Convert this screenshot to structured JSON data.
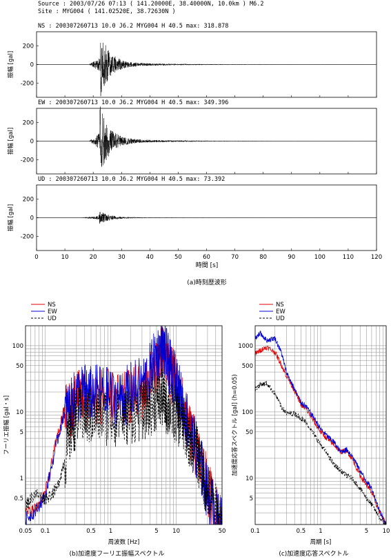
{
  "header": {
    "source": "Source : 2003/07/26 07:13 ( 141.20000E, 38.40000N,   10.0km ) M6.2",
    "site": "Site   : MYG004 ( 141.02520E, 38.72630N )"
  },
  "colors": {
    "NS": "#e00000",
    "EW": "#0000d0",
    "UD": "#000000"
  },
  "chart_data": [
    {
      "type": "line",
      "title": "(a)時刻歴波形",
      "xlabel": "時間 [s]",
      "xlim": [
        0,
        120
      ],
      "xticks": [
        "0",
        "10",
        "20",
        "30",
        "40",
        "50",
        "60",
        "70",
        "80",
        "90",
        "100",
        "110",
        "120"
      ],
      "panels": [
        {
          "component": "NS",
          "label": "NS : 200307260713  10.0 J6.2 MYG004 H  40.5 max: 318.878",
          "ylabel": "振幅 [gal]",
          "ylim": [
            -350,
            350
          ],
          "yticks": [
            "200",
            "0",
            "-200"
          ],
          "max": 318.878,
          "onset_s": 18.5,
          "peak_s": 22.6
        },
        {
          "component": "EW",
          "label": "EW : 200307260713  10.0 J6.2 MYG004 H  40.5 max: 349.396",
          "ylabel": "振幅 [gal]",
          "ylim": [
            -350,
            350
          ],
          "yticks": [
            "200",
            "0",
            "-200"
          ],
          "max": 349.396,
          "onset_s": 18.5,
          "peak_s": 22.4
        },
        {
          "component": "UD",
          "label": "UD : 200307260713  10.0 J6.2 MYG004 H  40.5 max:  73.392",
          "ylabel": "振幅 [gal]",
          "ylim": [
            -350,
            350
          ],
          "yticks": [
            "200",
            "0",
            "-200"
          ],
          "max": 73.392,
          "onset_s": 15.5,
          "peak_s": 22.0
        }
      ]
    },
    {
      "type": "line",
      "title": "(b)加速度フーリエ振幅スペクトル",
      "xlabel": "周波数 [Hz]",
      "ylabel": "フーリエ振幅 [gal・s]",
      "xscale": "log",
      "yscale": "log",
      "xlim": [
        0.05,
        50
      ],
      "ylim": [
        0.2,
        200
      ],
      "xticks": [
        "0.05",
        "0.1",
        "0.5",
        "1",
        "5",
        "10",
        "50"
      ],
      "yticks": [
        "100",
        "50",
        "10",
        "5",
        "1",
        "0.5"
      ],
      "legend": [
        "NS",
        "EW",
        "UD"
      ],
      "series": [
        {
          "name": "NS",
          "x": [
            0.05,
            0.07,
            0.1,
            0.15,
            0.2,
            0.25,
            0.3,
            0.4,
            0.5,
            0.7,
            1,
            1.5,
            2,
            3,
            4,
            5,
            6,
            7,
            8,
            10,
            12,
            15,
            20,
            25,
            30,
            40,
            50
          ],
          "y": [
            0.3,
            0.35,
            0.6,
            4,
            12,
            12,
            18,
            20,
            18,
            20,
            17,
            15,
            20,
            22,
            35,
            60,
            80,
            70,
            45,
            30,
            15,
            7,
            3,
            1.5,
            0.8,
            0.35,
            0.2
          ]
        },
        {
          "name": "EW",
          "x": [
            0.05,
            0.07,
            0.1,
            0.15,
            0.2,
            0.25,
            0.3,
            0.4,
            0.5,
            0.7,
            1,
            1.5,
            2,
            3,
            4,
            5,
            6,
            7,
            8,
            10,
            12,
            15,
            20,
            25,
            30,
            40,
            50
          ],
          "y": [
            0.25,
            0.32,
            0.55,
            3.5,
            11,
            13,
            20,
            22,
            20,
            22,
            18,
            17,
            23,
            28,
            45,
            80,
            100,
            80,
            50,
            32,
            16,
            7,
            3,
            1.4,
            0.7,
            0.3,
            0.2
          ]
        },
        {
          "name": "UD",
          "x": [
            0.05,
            0.07,
            0.1,
            0.15,
            0.2,
            0.25,
            0.3,
            0.4,
            0.5,
            0.7,
            1,
            1.5,
            2,
            3,
            4,
            5,
            6,
            7,
            8,
            10,
            12,
            15,
            20,
            25,
            30,
            40,
            50
          ],
          "y": [
            0.4,
            0.6,
            0.5,
            0.7,
            2,
            6,
            9,
            10,
            9,
            10,
            9,
            9,
            10,
            11,
            13,
            16,
            18,
            14,
            12,
            10,
            8,
            5,
            3,
            1.4,
            0.7,
            0.35,
            0.2
          ]
        }
      ]
    },
    {
      "type": "line",
      "title": "(c)加速度応答スペクトル",
      "xlabel": "周期 [s]",
      "ylabel": "加速度応答スペクトル [gal] (h=0.05)",
      "xscale": "log",
      "yscale": "log",
      "xlim": [
        0.1,
        10
      ],
      "ylim": [
        2,
        2000
      ],
      "xticks": [
        "0.1",
        "0.5",
        "1",
        "5",
        "10"
      ],
      "yticks": [
        "1000",
        "500",
        "100",
        "50",
        "10",
        "5"
      ],
      "legend": [
        "NS",
        "EW",
        "UD"
      ],
      "series": [
        {
          "name": "NS",
          "x": [
            0.1,
            0.12,
            0.15,
            0.2,
            0.25,
            0.3,
            0.4,
            0.5,
            0.6,
            0.8,
            1,
            1.3,
            1.6,
            2,
            2.5,
            3,
            4,
            5,
            6,
            8,
            10
          ],
          "y": [
            750,
            850,
            950,
            800,
            520,
            350,
            210,
            130,
            110,
            70,
            50,
            38,
            32,
            25,
            26,
            20,
            11,
            8,
            6,
            3,
            2
          ]
        },
        {
          "name": "EW",
          "x": [
            0.1,
            0.12,
            0.15,
            0.2,
            0.25,
            0.3,
            0.4,
            0.5,
            0.6,
            0.8,
            1,
            1.3,
            1.6,
            2,
            2.5,
            3,
            4,
            5,
            6,
            8,
            10
          ],
          "y": [
            1300,
            1550,
            1200,
            1300,
            800,
            400,
            220,
            140,
            120,
            80,
            55,
            42,
            35,
            25,
            27,
            22,
            13,
            9,
            7,
            3.2,
            2
          ]
        },
        {
          "name": "UD",
          "x": [
            0.1,
            0.12,
            0.15,
            0.2,
            0.25,
            0.3,
            0.4,
            0.5,
            0.6,
            0.8,
            1,
            1.3,
            1.6,
            2,
            2.5,
            3,
            4,
            5,
            6,
            8,
            10
          ],
          "y": [
            220,
            260,
            270,
            190,
            120,
            95,
            95,
            80,
            70,
            45,
            32,
            22,
            16,
            13,
            11,
            10,
            7,
            5,
            4,
            2.5,
            2
          ]
        }
      ]
    }
  ]
}
